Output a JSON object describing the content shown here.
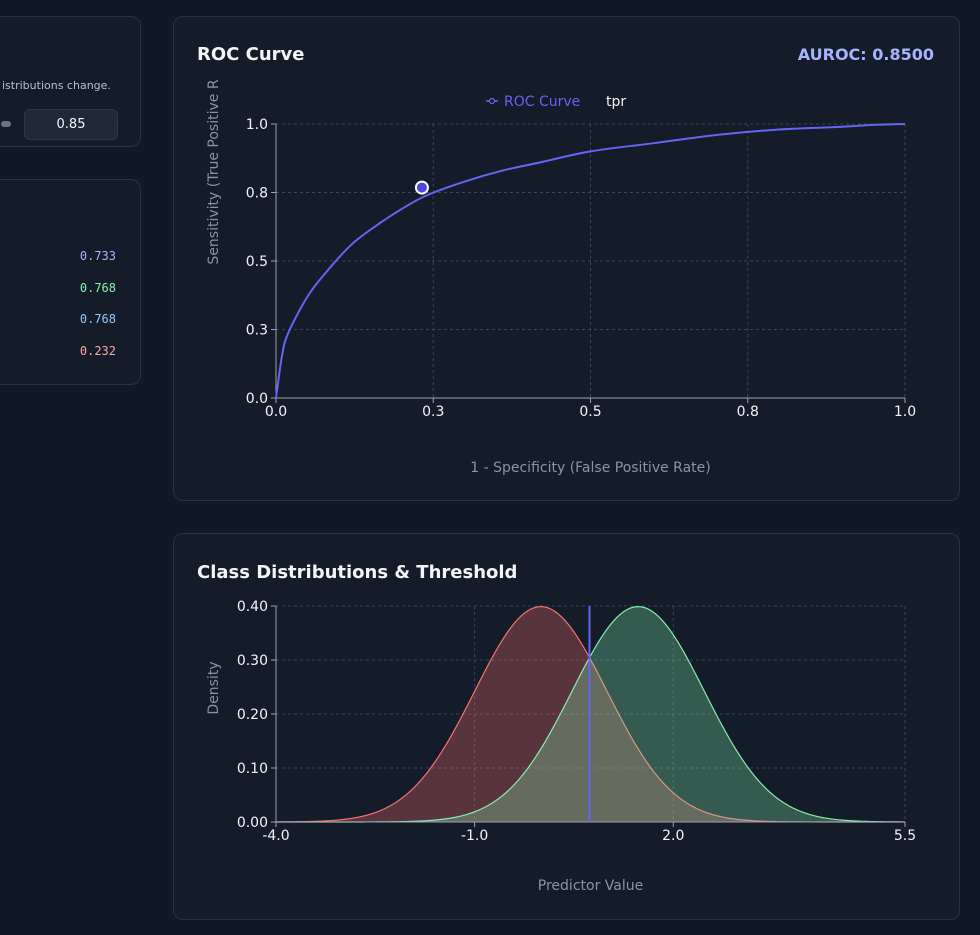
{
  "controls": {
    "hint": "istributions change.",
    "auroc_input": "0.85"
  },
  "metrics": [
    {
      "value": "0.733",
      "color": "#a5b4fc"
    },
    {
      "value": "0.768",
      "color": "#86efac"
    },
    {
      "value": "0.768",
      "color": "#93c5fd"
    },
    {
      "value": "0.232",
      "color": "#fca5a5"
    }
  ],
  "roc": {
    "title": "ROC Curve",
    "auroc_label": "AUROC: 0.8500",
    "legend": [
      "ROC Curve",
      "tpr"
    ],
    "xlabel": "1 - Specificity (False Positive Rate)",
    "ylabel": "Sensitivity (True Positive R"
  },
  "dist": {
    "title": "Class Distributions & Threshold",
    "xlabel": "Predictor Value",
    "ylabel": "Density"
  },
  "chart_data": [
    {
      "type": "line",
      "title": "ROC Curve",
      "xlabel": "1 - Specificity (False Positive Rate)",
      "ylabel": "Sensitivity (True Positive R",
      "xlim": [
        0,
        1
      ],
      "ylim": [
        0,
        1
      ],
      "x_ticks": [
        "0.0",
        "0.3",
        "0.5",
        "0.8",
        "1.0"
      ],
      "x_tick_values": [
        0,
        0.25,
        0.5,
        0.75,
        1.0
      ],
      "y_ticks": [
        "0.0",
        "0.3",
        "0.5",
        "0.8",
        "1.0"
      ],
      "y_tick_values": [
        0,
        0.25,
        0.5,
        0.75,
        1.0
      ],
      "legend_position": "top",
      "series": [
        {
          "name": "ROC Curve",
          "color": "#6366f1",
          "x": [
            0,
            0.01,
            0.02,
            0.05,
            0.08,
            0.12,
            0.16,
            0.2,
            0.24,
            0.3,
            0.36,
            0.42,
            0.5,
            0.6,
            0.7,
            0.8,
            0.9,
            0.95,
            1.0
          ],
          "y": [
            0,
            0.16,
            0.24,
            0.37,
            0.46,
            0.56,
            0.63,
            0.69,
            0.74,
            0.79,
            0.83,
            0.86,
            0.9,
            0.93,
            0.96,
            0.98,
            0.99,
            0.997,
            1.0
          ]
        }
      ],
      "operating_point": {
        "x": 0.232,
        "y": 0.768
      }
    },
    {
      "type": "area",
      "title": "Class Distributions & Threshold",
      "xlabel": "Predictor Value",
      "ylabel": "Density",
      "xlim": [
        -4.0,
        5.5
      ],
      "ylim": [
        0,
        0.4
      ],
      "x_ticks": [
        "-4.0",
        "-1.0",
        "2.0",
        "5.5"
      ],
      "x_tick_values": [
        -4.0,
        -1.0,
        2.0,
        5.5
      ],
      "y_ticks": [
        "0.00",
        "0.10",
        "0.20",
        "0.30",
        "0.40"
      ],
      "y_tick_values": [
        0,
        0.1,
        0.2,
        0.3,
        0.4
      ],
      "series": [
        {
          "mean": 0.0,
          "sd": 1.0,
          "color": "#f87171"
        },
        {
          "mean": 1.47,
          "sd": 1.0,
          "color": "#86efac"
        }
      ],
      "threshold": 0.735,
      "threshold_color": "#6366f1"
    }
  ]
}
